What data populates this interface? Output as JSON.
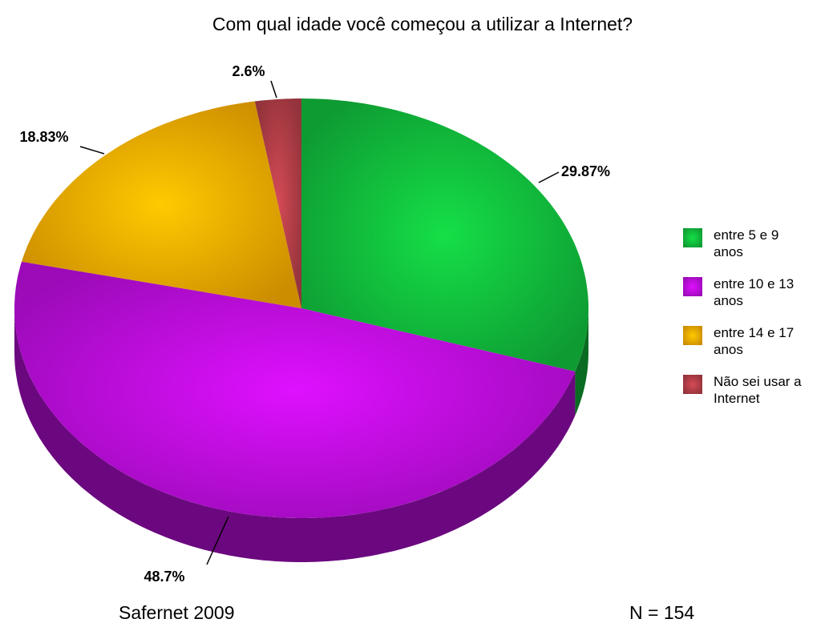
{
  "chart_data": {
    "type": "pie",
    "title": "Com qual idade você começou a utilizar a Internet?",
    "categories": [
      "entre 5 e 9 anos",
      "entre 10 e 13 anos",
      "entre 14 e 17 anos",
      "Não sei usar a Internet"
    ],
    "values": [
      29.87,
      48.7,
      18.83,
      2.6
    ],
    "value_labels": [
      "29.87%",
      "48.7%",
      "18.83%",
      "2.6%"
    ],
    "colors": [
      "#12c23e",
      "#c20ee6",
      "#ffb000",
      "#b8404a"
    ],
    "legend": "right",
    "annotations": [
      "Safernet 2009",
      "N = 154"
    ]
  }
}
